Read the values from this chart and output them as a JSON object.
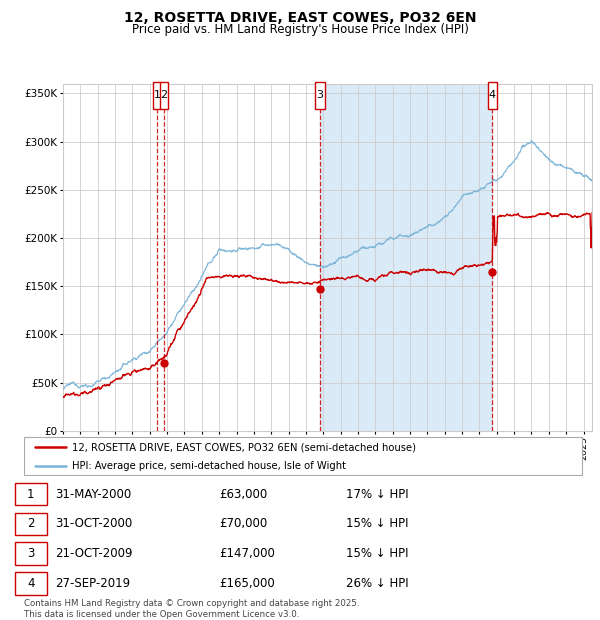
{
  "title": "12, ROSETTA DRIVE, EAST COWES, PO32 6EN",
  "subtitle": "Price paid vs. HM Land Registry's House Price Index (HPI)",
  "ylim": [
    0,
    360000
  ],
  "yticks": [
    0,
    50000,
    100000,
    150000,
    200000,
    250000,
    300000,
    350000
  ],
  "ytick_labels": [
    "£0",
    "£50K",
    "£100K",
    "£150K",
    "£200K",
    "£250K",
    "£300K",
    "£350K"
  ],
  "hpi_color": "#7ab4d8",
  "hpi_fill_color": "#d0e5f5",
  "price_color": "#cc0000",
  "background_color": "#ffffff",
  "shade_color": "#daeaf7",
  "grid_color": "#cccccc",
  "sale_dates_num": [
    2000.42,
    2000.83,
    2009.8,
    2019.75
  ],
  "sale_prices": [
    63000,
    70000,
    147000,
    165000
  ],
  "shade_regions": [
    [
      2009.8,
      2019.75
    ]
  ],
  "legend_line1": "12, ROSETTA DRIVE, EAST COWES, PO32 6EN (semi-detached house)",
  "legend_line2": "HPI: Average price, semi-detached house, Isle of Wight",
  "table_data": [
    {
      "num": "1",
      "date": "31-MAY-2000",
      "price": "£63,000",
      "pct": "17% ↓ HPI"
    },
    {
      "num": "2",
      "date": "31-OCT-2000",
      "price": "£70,000",
      "pct": "15% ↓ HPI"
    },
    {
      "num": "3",
      "date": "21-OCT-2009",
      "price": "£147,000",
      "pct": "15% ↓ HPI"
    },
    {
      "num": "4",
      "date": "27-SEP-2019",
      "price": "£165,000",
      "pct": "26% ↓ HPI"
    }
  ],
  "footer": "Contains HM Land Registry data © Crown copyright and database right 2025.\nThis data is licensed under the Open Government Licence v3.0.",
  "xmin": 1995.0,
  "xmax": 2025.5
}
